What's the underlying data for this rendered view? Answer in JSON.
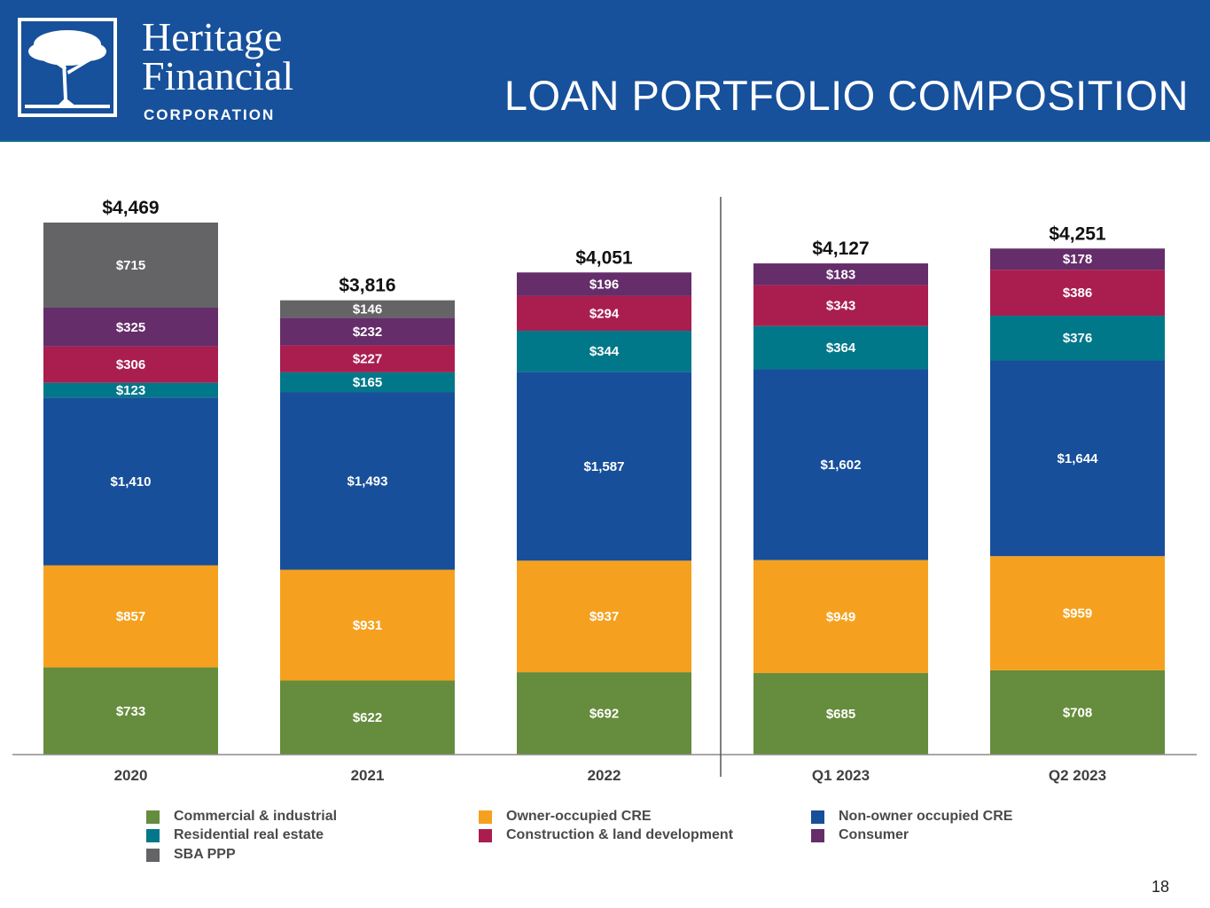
{
  "header": {
    "logo_line1": "Heritage",
    "logo_line2": "Financial",
    "logo_line3": "CORPORATION",
    "title": "LOAN PORTFOLIO COMPOSITION",
    "background_color": "#17509b"
  },
  "page_number": "18",
  "chart_data": {
    "type": "bar",
    "stacked": true,
    "title": "LOAN PORTFOLIO COMPOSITION",
    "units": "$ millions",
    "categories": [
      "2020",
      "2021",
      "2022",
      "Q1 2023",
      "Q2 2023"
    ],
    "totals": [
      4469,
      3816,
      4051,
      4127,
      4251
    ],
    "total_labels": [
      "$4,469",
      "$3,816",
      "$4,051",
      "$4,127",
      "$4,251"
    ],
    "series": [
      {
        "name": "Commercial & industrial",
        "color": "#668c3d",
        "values": [
          733,
          622,
          692,
          685,
          708
        ],
        "labels": [
          "$733",
          "$622",
          "$692",
          "$685",
          "$708"
        ]
      },
      {
        "name": "Owner-occupied CRE",
        "color": "#f5a11f",
        "values": [
          857,
          931,
          937,
          949,
          959
        ],
        "labels": [
          "$857",
          "$931",
          "$937",
          "$949",
          "$959"
        ]
      },
      {
        "name": "Non-owner occupied CRE",
        "color": "#174f9a",
        "values": [
          1410,
          1493,
          1587,
          1602,
          1644
        ],
        "labels": [
          "$1,410",
          "$1,493",
          "$1,587",
          "$1,602",
          "$1,644"
        ]
      },
      {
        "name": "Residential real estate",
        "color": "#00788a",
        "values": [
          123,
          165,
          344,
          364,
          376
        ],
        "labels": [
          "$123",
          "$165",
          "$344",
          "$364",
          "$376"
        ]
      },
      {
        "name": "Construction & land development",
        "color": "#a91e4f",
        "values": [
          306,
          227,
          294,
          343,
          386
        ],
        "labels": [
          "$306",
          "$227",
          "$294",
          "$343",
          "$386"
        ]
      },
      {
        "name": "Consumer",
        "color": "#652d6a",
        "values": [
          325,
          232,
          196,
          183,
          178
        ],
        "labels": [
          "$325",
          "$232",
          "$196",
          "$183",
          "$178"
        ]
      },
      {
        "name": "SBA PPP",
        "color": "#646467",
        "values": [
          715,
          146,
          0,
          0,
          0
        ],
        "labels": [
          "$715",
          "$146",
          "",
          "",
          ""
        ]
      }
    ],
    "ylim": [
      0,
      4469
    ],
    "grid": false,
    "divider_after_category": "2022",
    "legend_position": "bottom"
  }
}
